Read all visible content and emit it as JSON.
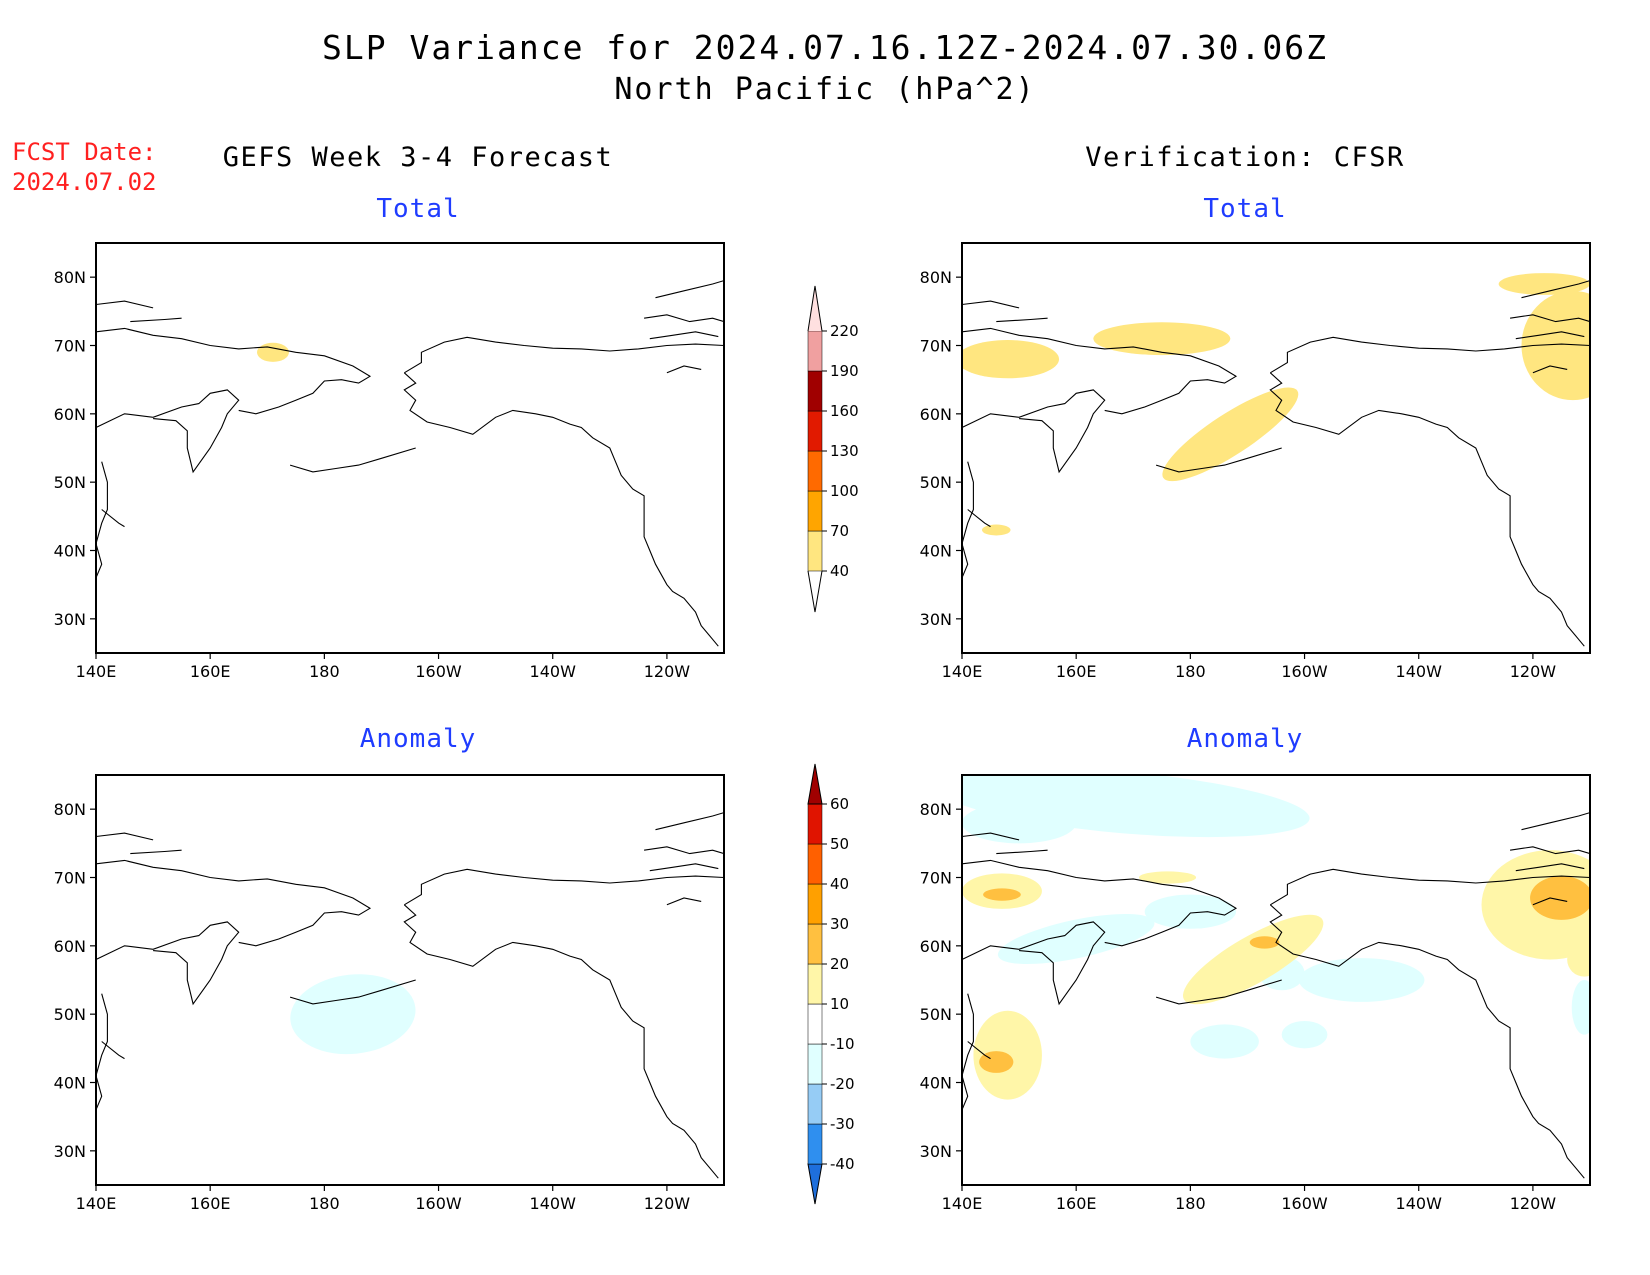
{
  "title_line1": "SLP Variance for 2024.07.16.12Z-2024.07.30.06Z",
  "title_line2": "North Pacific (hPa^2)",
  "fcst_line1": "FCST Date:",
  "fcst_line2": "2024.07.02",
  "left_column_title": "GEFS Week 3-4 Forecast",
  "right_column_title": "Verification: CFSR",
  "panel_titles": [
    "Total",
    "Total",
    "Anomaly",
    "Anomaly"
  ],
  "chart_data": {
    "type": "heatmap",
    "map_extent": {
      "lon": [
        140,
        250
      ],
      "lat": [
        25,
        85
      ]
    },
    "x_ticks": [
      "140E",
      "160E",
      "180",
      "160W",
      "140W",
      "120W"
    ],
    "y_ticks": [
      "30N",
      "40N",
      "50N",
      "60N",
      "70N",
      "80N"
    ],
    "total_colorbar": {
      "levels": [
        "40",
        "70",
        "100",
        "130",
        "160",
        "190",
        "220"
      ],
      "colors": [
        "#ffe680",
        "#ffa500",
        "#ff6a00",
        "#e11a00",
        "#a00000",
        "#f0a0a0",
        "#ffe0e0"
      ]
    },
    "anomaly_colorbar": {
      "levels": [
        "-40",
        "-30",
        "-20",
        "-10",
        "10",
        "20",
        "30",
        "40",
        "50",
        "60"
      ],
      "colors": [
        "#1e6fdc",
        "#2f8fef",
        "#96ccf5",
        "#e0ffff",
        "#ffffff",
        "#fff6a8",
        "#ffc040",
        "#ffa000",
        "#ff6000",
        "#e01400",
        "#a00000"
      ]
    },
    "panels": [
      {
        "title": "Total",
        "column": "GEFS Week 3-4 Forecast",
        "shaded_regions": [
          {
            "lon": 171,
            "lat": 69,
            "bin": "40-70"
          }
        ]
      },
      {
        "title": "Total",
        "column": "Verification: CFSR",
        "shaded_regions": [
          {
            "lon": 147,
            "lat": 68,
            "bin": "40-70"
          },
          {
            "lon": 175,
            "lat": 71,
            "bin": "40-70"
          },
          {
            "lon": 187,
            "lat": 57,
            "bin": "40-70"
          },
          {
            "lon": 247,
            "lat": 70,
            "bin": "40-70"
          },
          {
            "lon": 146,
            "lat": 43,
            "bin": "40-70"
          }
        ]
      },
      {
        "title": "Anomaly",
        "column": "GEFS Week 3-4 Forecast",
        "shaded_regions": [
          {
            "lon": 185,
            "lat": 50,
            "bin": "-20 to -10"
          }
        ]
      },
      {
        "title": "Anomaly",
        "column": "Verification: CFSR",
        "shaded_regions": [
          {
            "lon": 170,
            "lat": 81,
            "bin": "-20 to -10"
          },
          {
            "lon": 147,
            "lat": 68,
            "bin": "20 to 30"
          },
          {
            "lon": 148,
            "lat": 44,
            "bin": "20 to 30"
          },
          {
            "lon": 191,
            "lat": 62,
            "bin": "20 to 30"
          },
          {
            "lon": 243,
            "lat": 67,
            "bin": "20 to 30"
          },
          {
            "lon": 210,
            "lat": 55,
            "bin": "-20 to -10"
          },
          {
            "lon": 186,
            "lat": 46,
            "bin": "-20 to -10"
          }
        ]
      }
    ]
  }
}
